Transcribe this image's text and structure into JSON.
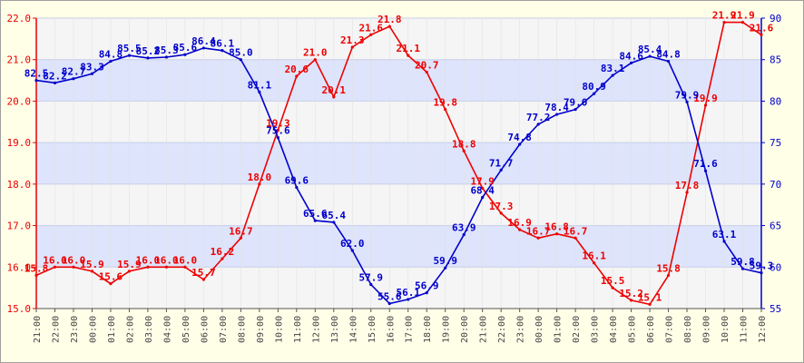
{
  "chart_data": {
    "type": "line",
    "title": "",
    "categories": [
      "21:00",
      "22:00",
      "23:00",
      "00:00",
      "01:00",
      "02:00",
      "03:00",
      "04:00",
      "05:00",
      "06:00",
      "07:00",
      "08:00",
      "09:00",
      "10:00",
      "11:00",
      "12:00",
      "13:00",
      "14:00",
      "15:00",
      "16:00",
      "17:00",
      "18:00",
      "19:00",
      "20:00",
      "21:00",
      "22:00",
      "23:00",
      "00:00",
      "01:00",
      "02:00",
      "03:00",
      "04:00",
      "05:00",
      "06:00",
      "07:00",
      "08:00",
      "09:00",
      "10:00",
      "11:00",
      "12:00"
    ],
    "left_axis": {
      "ylim": [
        15.0,
        22.0
      ],
      "ticks": [
        "15.0",
        "16.0",
        "17.0",
        "18.0",
        "19.0",
        "20.0",
        "21.0",
        "22.0"
      ],
      "color": "#ee0000"
    },
    "right_axis": {
      "ylim": [
        55,
        90
      ],
      "ticks": [
        "55",
        "60",
        "65",
        "70",
        "75",
        "80",
        "85",
        "90"
      ],
      "color": "#0000cc"
    },
    "series": [
      {
        "axis": "left",
        "color": "#ee0000",
        "values": [
          15.8,
          16.0,
          16.0,
          15.9,
          15.6,
          15.9,
          16.0,
          16.0,
          16.0,
          15.7,
          16.2,
          16.7,
          18.0,
          19.3,
          20.6,
          21.0,
          20.1,
          21.3,
          21.6,
          21.8,
          21.1,
          20.7,
          19.8,
          18.8,
          17.9,
          17.3,
          16.9,
          16.7,
          16.8,
          16.7,
          16.1,
          15.5,
          15.2,
          15.1,
          15.8,
          17.8,
          19.9,
          21.9,
          21.9,
          21.6
        ],
        "labels": [
          "15.8",
          "16.0",
          "16.0",
          "15.9",
          "15.6",
          "15.9",
          "16.0",
          "16.0",
          "16.0",
          "15.7",
          "16.2",
          "16.7",
          "18.0",
          "19.3",
          "20.6",
          "21.0",
          "20.1",
          "21.3",
          "21.6",
          "21.8",
          "21.1",
          "20.7",
          "19.8",
          "18.8",
          "17.9",
          "17.3",
          "16.9",
          "16.7",
          "16.8",
          "16.7",
          "16.1",
          "15.5",
          "15.2",
          "15.1",
          "15.8",
          "17.8",
          "19.9",
          "21.9",
          "21.9",
          "21.6"
        ]
      },
      {
        "axis": "right",
        "color": "#0000cc",
        "values": [
          82.5,
          82.2,
          82.7,
          83.3,
          84.8,
          85.5,
          85.2,
          85.3,
          85.6,
          86.4,
          86.1,
          85.0,
          81.1,
          75.6,
          69.6,
          65.6,
          65.4,
          62.0,
          57.9,
          55.6,
          56.1,
          56.9,
          59.9,
          63.9,
          68.4,
          71.7,
          74.8,
          77.2,
          78.4,
          79.0,
          80.9,
          83.1,
          84.6,
          85.4,
          84.8,
          79.9,
          71.6,
          63.1,
          59.8,
          59.3
        ],
        "labels": [
          "82.5",
          "82.2",
          "82.7",
          "83.3",
          "84.8",
          "85.5",
          "85.2",
          "85.3",
          "85.6",
          "86.4",
          "86.1",
          "85.0",
          "81.1",
          "75.6",
          "69.6",
          "65.6",
          "65.4",
          "62.0",
          "57.9",
          "55.6",
          "56.1",
          "56.9",
          "59.9",
          "63.9",
          "68.4",
          "71.7",
          "74.8",
          "77.2",
          "78.4",
          "79.0",
          "80.9",
          "83.1",
          "84.6",
          "85.4",
          "84.8",
          "79.9",
          "71.6",
          "63.1",
          "59.8",
          "59.3"
        ]
      }
    ],
    "grid": true,
    "legend": "none"
  }
}
